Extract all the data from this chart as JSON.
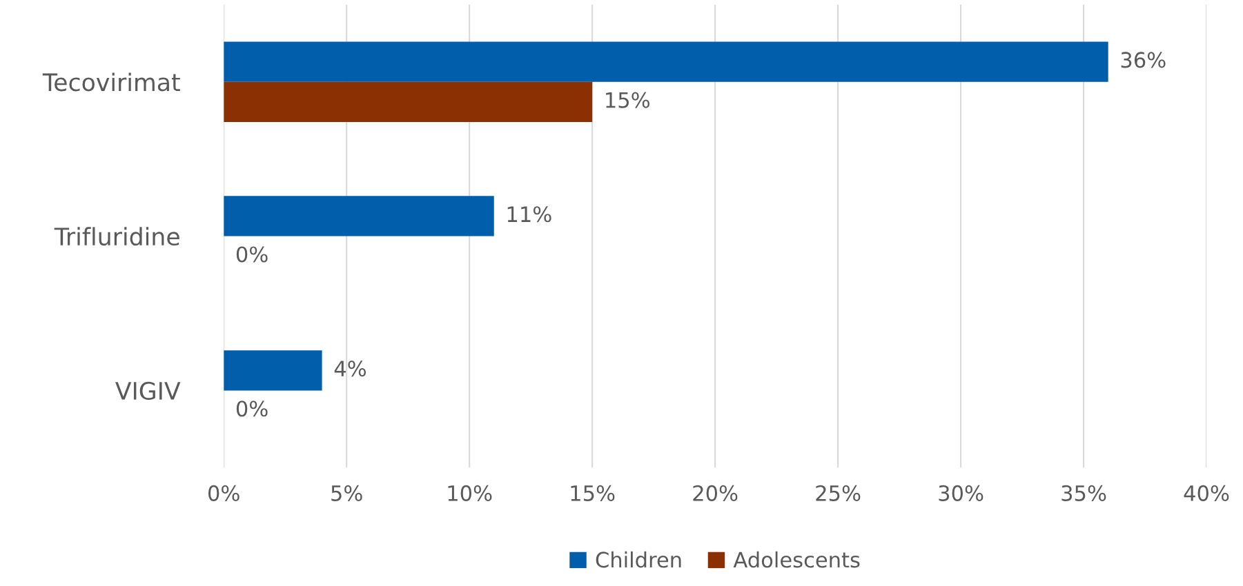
{
  "chart_data": {
    "type": "bar",
    "orientation": "horizontal",
    "categories": [
      "Tecovirimat",
      "Trifluridine",
      "VIGIV"
    ],
    "series": [
      {
        "name": "Children",
        "color": "#005eaa",
        "values": [
          36,
          11,
          4
        ]
      },
      {
        "name": "Adolescents",
        "color": "#8b3003",
        "values": [
          15,
          0,
          0
        ]
      }
    ],
    "xlim": [
      0,
      40
    ],
    "xticks": [
      {
        "value": 0,
        "label": "0%"
      },
      {
        "value": 5,
        "label": "5%"
      },
      {
        "value": 10,
        "label": "10%"
      },
      {
        "value": 15,
        "label": "15%"
      },
      {
        "value": 20,
        "label": "20%"
      },
      {
        "value": 25,
        "label": "25%"
      },
      {
        "value": 30,
        "label": "30%"
      },
      {
        "value": 35,
        "label": "35%"
      },
      {
        "value": 40,
        "label": "40%"
      }
    ],
    "grid": "x",
    "legend": "bottom",
    "value_labels": [
      [
        "36%",
        "11%",
        "4%"
      ],
      [
        "15%",
        "0%",
        "0%"
      ]
    ]
  }
}
